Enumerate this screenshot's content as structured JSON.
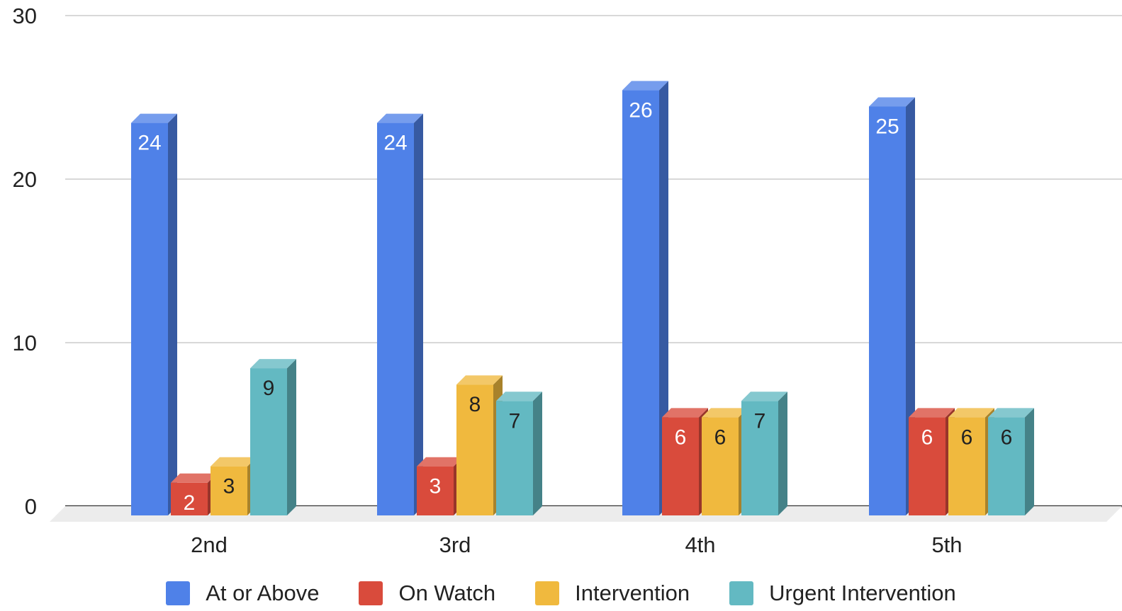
{
  "chart_data": {
    "type": "bar",
    "title": "",
    "xlabel": "",
    "ylabel": "",
    "categories": [
      "2nd",
      "3rd",
      "4th",
      "5th"
    ],
    "series": [
      {
        "name": "At or Above",
        "values": [
          24,
          24,
          26,
          25
        ],
        "color": "#4f81e8",
        "label_color": "#ffffff"
      },
      {
        "name": "On Watch",
        "values": [
          2,
          3,
          6,
          6
        ],
        "color": "#d94b3c",
        "label_color": "#ffffff"
      },
      {
        "name": "Intervention",
        "values": [
          3,
          8,
          6,
          6
        ],
        "color": "#f0b93e",
        "label_color": "#222222"
      },
      {
        "name": "Urgent Intervention",
        "values": [
          9,
          7,
          7,
          6
        ],
        "color": "#63b9c2",
        "label_color": "#222222"
      }
    ],
    "ylim": [
      0,
      30
    ],
    "yticks": [
      0,
      10,
      20,
      30
    ],
    "grid": true,
    "legend_position": "bottom",
    "style": "3d-column"
  }
}
